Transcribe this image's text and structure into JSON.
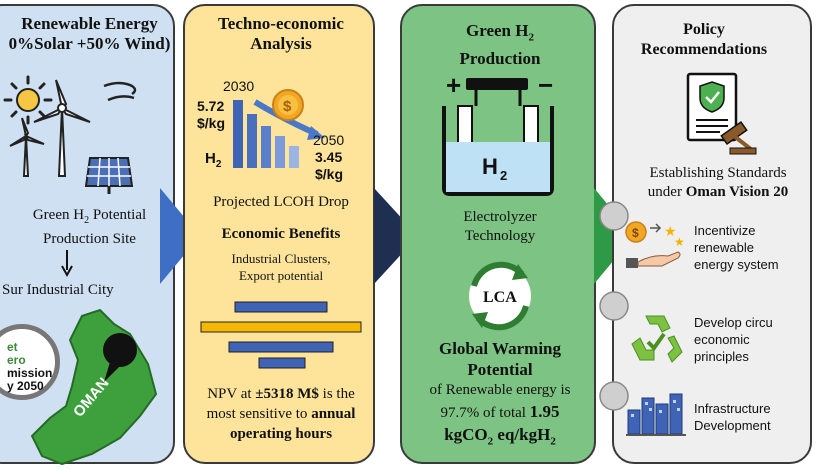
{
  "panel1": {
    "title_line1": "Renewable Energy",
    "title_line2": "0%Solar +50% Wind)",
    "site_line1": "Green H",
    "site_line1_sub": "2",
    "site_line1_end": " Potential",
    "site_line2": "Production Site",
    "city": "Sur Industrial City",
    "badge_lines": [
      "et",
      "ero",
      "mission",
      "y 2050"
    ],
    "map_label": "OMAN"
  },
  "panel2": {
    "title_line1": "Techno-economic",
    "title_line2": "Analysis",
    "year_start": "2030",
    "value_start": "5.72",
    "unit_start": "$/kg",
    "year_end": "2050",
    "value_end": "3.45",
    "unit_end": "$/kg",
    "h2": "H",
    "h2_sub": "2",
    "caption": "Projected LCOH Drop",
    "benefits_title": "Economic Benefits",
    "benefits_line1": "Industrial Clusters,",
    "benefits_line2": "Export potential",
    "npv_line1_pre": "NPV at ",
    "npv_line1_bold": "±5318 M$",
    "npv_line1_post": " is the",
    "npv_line2_pre": "most sensitive to ",
    "npv_line2_bold": "annual",
    "npv_line3": "operating hours"
  },
  "panel3": {
    "title_line1": "Green H",
    "title_sub": "2",
    "title_line2": "Production",
    "cell_label": "H",
    "cell_sub": "2",
    "tech_line1": "Electrolyzer",
    "tech_line2": "Technology",
    "lca": "LCA",
    "gwp_line1": "Global Warming",
    "gwp_line2": "Potential",
    "gwp_line3": "of Renewable energy is",
    "gwp_line4_pre": "97.7% of total ",
    "gwp_line4_bold": "1.95",
    "gwp_line5_a": "kgCO",
    "gwp_line5_sub1": "2",
    "gwp_line5_b": " eq/kgH",
    "gwp_line5_sub2": "2"
  },
  "panel4": {
    "title_line1": "Policy",
    "title_line2": "Recommendations",
    "standards_line1": "Establishing Standards",
    "standards_line2_pre": "under ",
    "standards_line2_bold": "Oman Vision 20",
    "rec1": [
      "Incentivize",
      "renewable",
      "energy system"
    ],
    "rec2": [
      "Develop circu",
      "economic",
      "principles"
    ],
    "rec3": [
      "Infrastructure",
      "Development"
    ]
  },
  "colors": {
    "panel1": "#cfe0f2",
    "panel2": "#fde49a",
    "panel3": "#7dc383",
    "panel4": "#efefef",
    "arrow1": "#3f6fc4",
    "arrow2": "#1f2f52",
    "arrow3": "#2e9a48",
    "oman_green": "#3da03d",
    "bar_blue": "#3f63b5",
    "bar_yellow": "#f5b800"
  }
}
